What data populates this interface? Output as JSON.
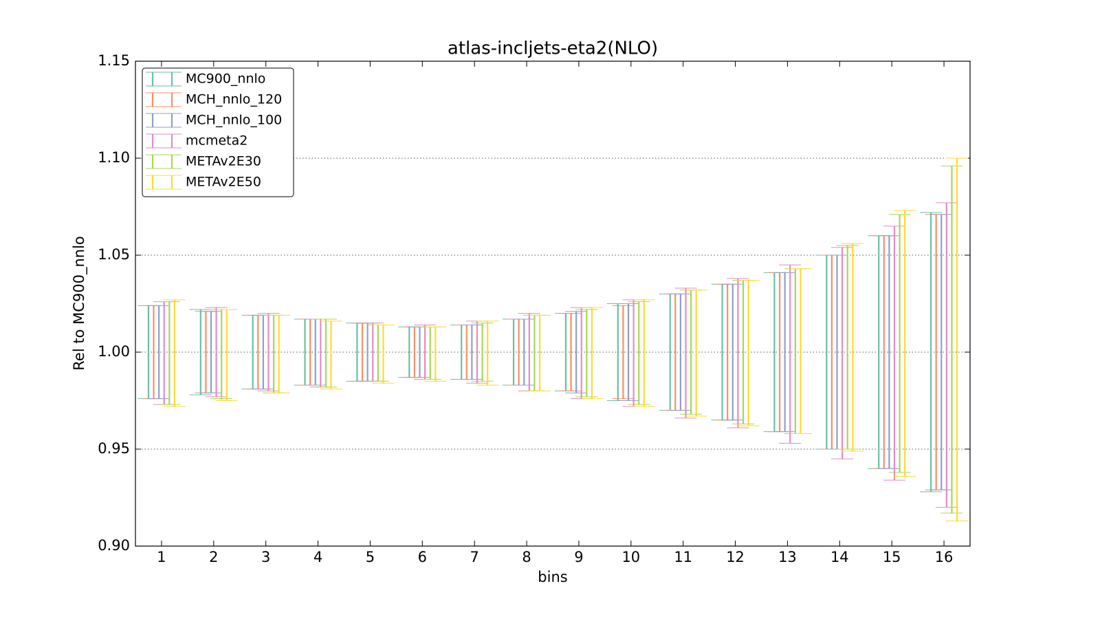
{
  "chart_data": {
    "type": "errorbar",
    "title": "atlas-incljets-eta2(NLO)",
    "x_label": "bins",
    "y_label": "Rel to MC900_nnlo",
    "categories": [
      "1",
      "2",
      "3",
      "4",
      "5",
      "6",
      "7",
      "8",
      "9",
      "10",
      "11",
      "12",
      "13",
      "14",
      "15",
      "16"
    ],
    "series": [
      {
        "name": "MC900_nnlo",
        "color": "#66c2a5",
        "lower": [
          0.976,
          0.978,
          0.981,
          0.983,
          0.985,
          0.987,
          0.986,
          0.983,
          0.98,
          0.975,
          0.97,
          0.965,
          0.959,
          0.95,
          0.94,
          0.928
        ],
        "upper": [
          1.024,
          1.022,
          1.019,
          1.017,
          1.015,
          1.013,
          1.014,
          1.017,
          1.02,
          1.025,
          1.03,
          1.035,
          1.041,
          1.05,
          1.06,
          1.072
        ]
      },
      {
        "name": "MCH_nnlo_120",
        "color": "#fc8d62",
        "lower": [
          0.976,
          0.979,
          0.981,
          0.983,
          0.985,
          0.987,
          0.986,
          0.983,
          0.98,
          0.976,
          0.97,
          0.965,
          0.959,
          0.95,
          0.94,
          0.929
        ],
        "upper": [
          1.024,
          1.021,
          1.019,
          1.017,
          1.015,
          1.013,
          1.014,
          1.017,
          1.02,
          1.024,
          1.03,
          1.035,
          1.041,
          1.05,
          1.06,
          1.071
        ]
      },
      {
        "name": "MCH_nnlo_100",
        "color": "#8da0cb",
        "lower": [
          0.976,
          0.979,
          0.981,
          0.983,
          0.985,
          0.987,
          0.986,
          0.983,
          0.979,
          0.975,
          0.97,
          0.965,
          0.959,
          0.95,
          0.94,
          0.929
        ],
        "upper": [
          1.024,
          1.021,
          1.019,
          1.017,
          1.015,
          1.013,
          1.014,
          1.017,
          1.021,
          1.025,
          1.03,
          1.035,
          1.041,
          1.05,
          1.06,
          1.071
        ]
      },
      {
        "name": "mcmeta2",
        "color": "#e78ac3",
        "lower": [
          0.973,
          0.977,
          0.98,
          0.982,
          0.985,
          0.986,
          0.984,
          0.98,
          0.976,
          0.972,
          0.966,
          0.961,
          0.953,
          0.945,
          0.934,
          0.92
        ],
        "upper": [
          1.026,
          1.023,
          1.02,
          1.017,
          1.015,
          1.014,
          1.016,
          1.02,
          1.023,
          1.027,
          1.033,
          1.038,
          1.045,
          1.054,
          1.065,
          1.077
        ]
      },
      {
        "name": "METAv2E30",
        "color": "#a6d854",
        "lower": [
          0.973,
          0.976,
          0.979,
          0.982,
          0.985,
          0.986,
          0.985,
          0.98,
          0.977,
          0.973,
          0.968,
          0.963,
          0.958,
          0.95,
          0.938,
          0.917
        ],
        "upper": [
          1.026,
          1.022,
          1.019,
          1.017,
          1.014,
          1.013,
          1.015,
          1.019,
          1.022,
          1.026,
          1.032,
          1.037,
          1.043,
          1.055,
          1.071,
          1.096
        ]
      },
      {
        "name": "METAv2E50",
        "color": "#ffd92f",
        "lower": [
          0.972,
          0.975,
          0.979,
          0.981,
          0.984,
          0.985,
          0.983,
          0.98,
          0.976,
          0.972,
          0.967,
          0.962,
          0.958,
          0.949,
          0.936,
          0.913
        ],
        "upper": [
          1.027,
          1.022,
          1.019,
          1.016,
          1.014,
          1.013,
          1.016,
          1.019,
          1.023,
          1.027,
          1.032,
          1.037,
          1.043,
          1.056,
          1.073,
          1.1
        ]
      }
    ],
    "ylim": [
      0.9,
      1.15
    ],
    "yticks": [
      {
        "value": 0.9,
        "label": "0.90"
      },
      0.95,
      {
        "value": 1.0,
        "label": "1.00"
      },
      1.05,
      {
        "value": 1.1,
        "label": "1.10"
      },
      1.15
    ],
    "grid": true,
    "legend": "upper-left"
  }
}
